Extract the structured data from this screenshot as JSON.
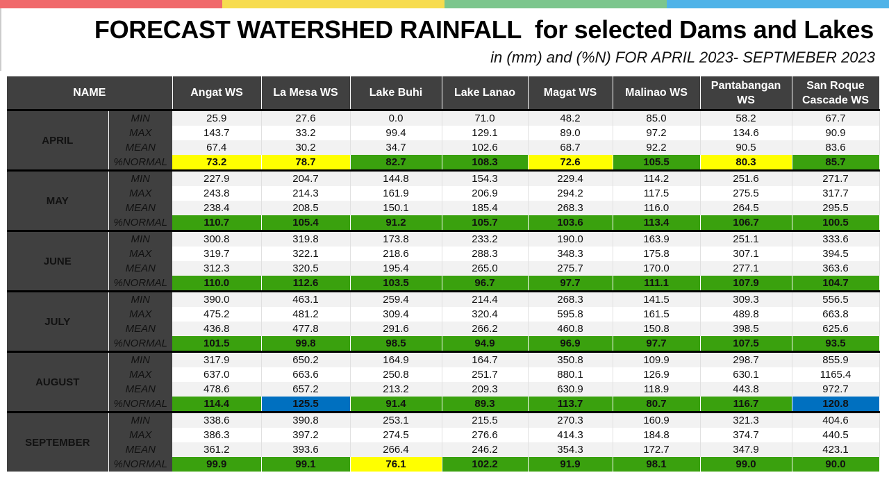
{
  "header": {
    "title": "FORECAST WATERSHED RAINFALL  for selected Dams and Lakes",
    "subtitle": "in (mm) and (%N) FOR APRIL 2023- SEPTMEBER 2023"
  },
  "colors": {
    "topbar": [
      "#f0696b",
      "#f7dc4f",
      "#7cc68d",
      "#4fb3e8"
    ],
    "header_bg": "#404040",
    "normal_green": "#3aa10e",
    "normal_yellow": "#ffff00",
    "normal_blue": "#0070c0"
  },
  "table": {
    "name_header": "NAME",
    "columns": [
      "Angat WS",
      "La Mesa WS",
      "Lake Buhi",
      "Lake Lanao",
      "Magat WS",
      "Malinao WS",
      "Pantabangan WS",
      "San Roque Cascade WS"
    ],
    "row_labels": [
      "MIN",
      "MAX",
      "MEAN",
      "%NORMAL"
    ],
    "months": [
      {
        "name": "APRIL",
        "min": [
          "25.9",
          "27.6",
          "0.0",
          "71.0",
          "48.2",
          "85.0",
          "58.2",
          "67.7"
        ],
        "max": [
          "143.7",
          "33.2",
          "99.4",
          "129.1",
          "89.0",
          "97.2",
          "134.6",
          "90.9"
        ],
        "mean": [
          "67.4",
          "30.2",
          "34.7",
          "102.6",
          "68.7",
          "92.2",
          "90.5",
          "83.6"
        ],
        "normal": [
          "73.2",
          "78.7",
          "82.7",
          "108.3",
          "72.6",
          "105.5",
          "80.3",
          "85.7"
        ],
        "normal_colors": [
          "yellow",
          "yellow",
          "green",
          "green",
          "yellow",
          "green",
          "yellow",
          "green"
        ]
      },
      {
        "name": "MAY",
        "min": [
          "227.9",
          "204.7",
          "144.8",
          "154.3",
          "229.4",
          "114.2",
          "251.6",
          "271.7"
        ],
        "max": [
          "243.8",
          "214.3",
          "161.9",
          "206.9",
          "294.2",
          "117.5",
          "275.5",
          "317.7"
        ],
        "mean": [
          "238.4",
          "208.5",
          "150.1",
          "185.4",
          "268.3",
          "116.0",
          "264.5",
          "295.5"
        ],
        "normal": [
          "110.7",
          "105.4",
          "91.2",
          "105.7",
          "103.6",
          "113.4",
          "106.7",
          "100.5"
        ],
        "normal_colors": [
          "green",
          "green",
          "green",
          "green",
          "green",
          "green",
          "green",
          "green"
        ]
      },
      {
        "name": "JUNE",
        "min": [
          "300.8",
          "319.8",
          "173.8",
          "233.2",
          "190.0",
          "163.9",
          "251.1",
          "333.6"
        ],
        "max": [
          "319.7",
          "322.1",
          "218.6",
          "288.3",
          "348.3",
          "175.8",
          "307.1",
          "394.5"
        ],
        "mean": [
          "312.3",
          "320.5",
          "195.4",
          "265.0",
          "275.7",
          "170.0",
          "277.1",
          "363.6"
        ],
        "normal": [
          "110.0",
          "112.6",
          "103.5",
          "96.7",
          "97.7",
          "111.1",
          "107.9",
          "104.7"
        ],
        "normal_colors": [
          "green",
          "green",
          "green",
          "green",
          "green",
          "green",
          "green",
          "green"
        ]
      },
      {
        "name": "JULY",
        "min": [
          "390.0",
          "463.1",
          "259.4",
          "214.4",
          "268.3",
          "141.5",
          "309.3",
          "556.5"
        ],
        "max": [
          "475.2",
          "481.2",
          "309.4",
          "320.4",
          "595.8",
          "161.5",
          "489.8",
          "663.8"
        ],
        "mean": [
          "436.8",
          "477.8",
          "291.6",
          "266.2",
          "460.8",
          "150.8",
          "398.5",
          "625.6"
        ],
        "normal": [
          "101.5",
          "99.8",
          "98.5",
          "94.9",
          "96.9",
          "97.7",
          "107.5",
          "93.5"
        ],
        "normal_colors": [
          "green",
          "green",
          "green",
          "green",
          "green",
          "green",
          "green",
          "green"
        ]
      },
      {
        "name": "AUGUST",
        "min": [
          "317.9",
          "650.2",
          "164.9",
          "164.7",
          "350.8",
          "109.9",
          "298.7",
          "855.9"
        ],
        "max": [
          "637.0",
          "663.6",
          "250.8",
          "251.7",
          "880.1",
          "126.9",
          "630.1",
          "1165.4"
        ],
        "mean": [
          "478.6",
          "657.2",
          "213.2",
          "209.3",
          "630.9",
          "118.9",
          "443.8",
          "972.7"
        ],
        "normal": [
          "114.4",
          "125.5",
          "91.4",
          "89.3",
          "113.7",
          "80.7",
          "116.7",
          "120.8"
        ],
        "normal_colors": [
          "green",
          "blue",
          "green",
          "green",
          "green",
          "green",
          "green",
          "blue"
        ]
      },
      {
        "name": "SEPTEMBER",
        "min": [
          "338.6",
          "390.8",
          "253.1",
          "215.5",
          "270.3",
          "160.9",
          "321.3",
          "404.6"
        ],
        "max": [
          "386.3",
          "397.2",
          "274.5",
          "276.6",
          "414.3",
          "184.8",
          "374.7",
          "440.5"
        ],
        "mean": [
          "361.2",
          "393.6",
          "266.4",
          "246.2",
          "354.3",
          "172.7",
          "347.9",
          "423.1"
        ],
        "normal": [
          "99.9",
          "99.1",
          "76.1",
          "102.2",
          "91.9",
          "98.1",
          "99.0",
          "90.0"
        ],
        "normal_colors": [
          "green",
          "green",
          "yellow",
          "green",
          "green",
          "green",
          "green",
          "green"
        ]
      }
    ]
  }
}
